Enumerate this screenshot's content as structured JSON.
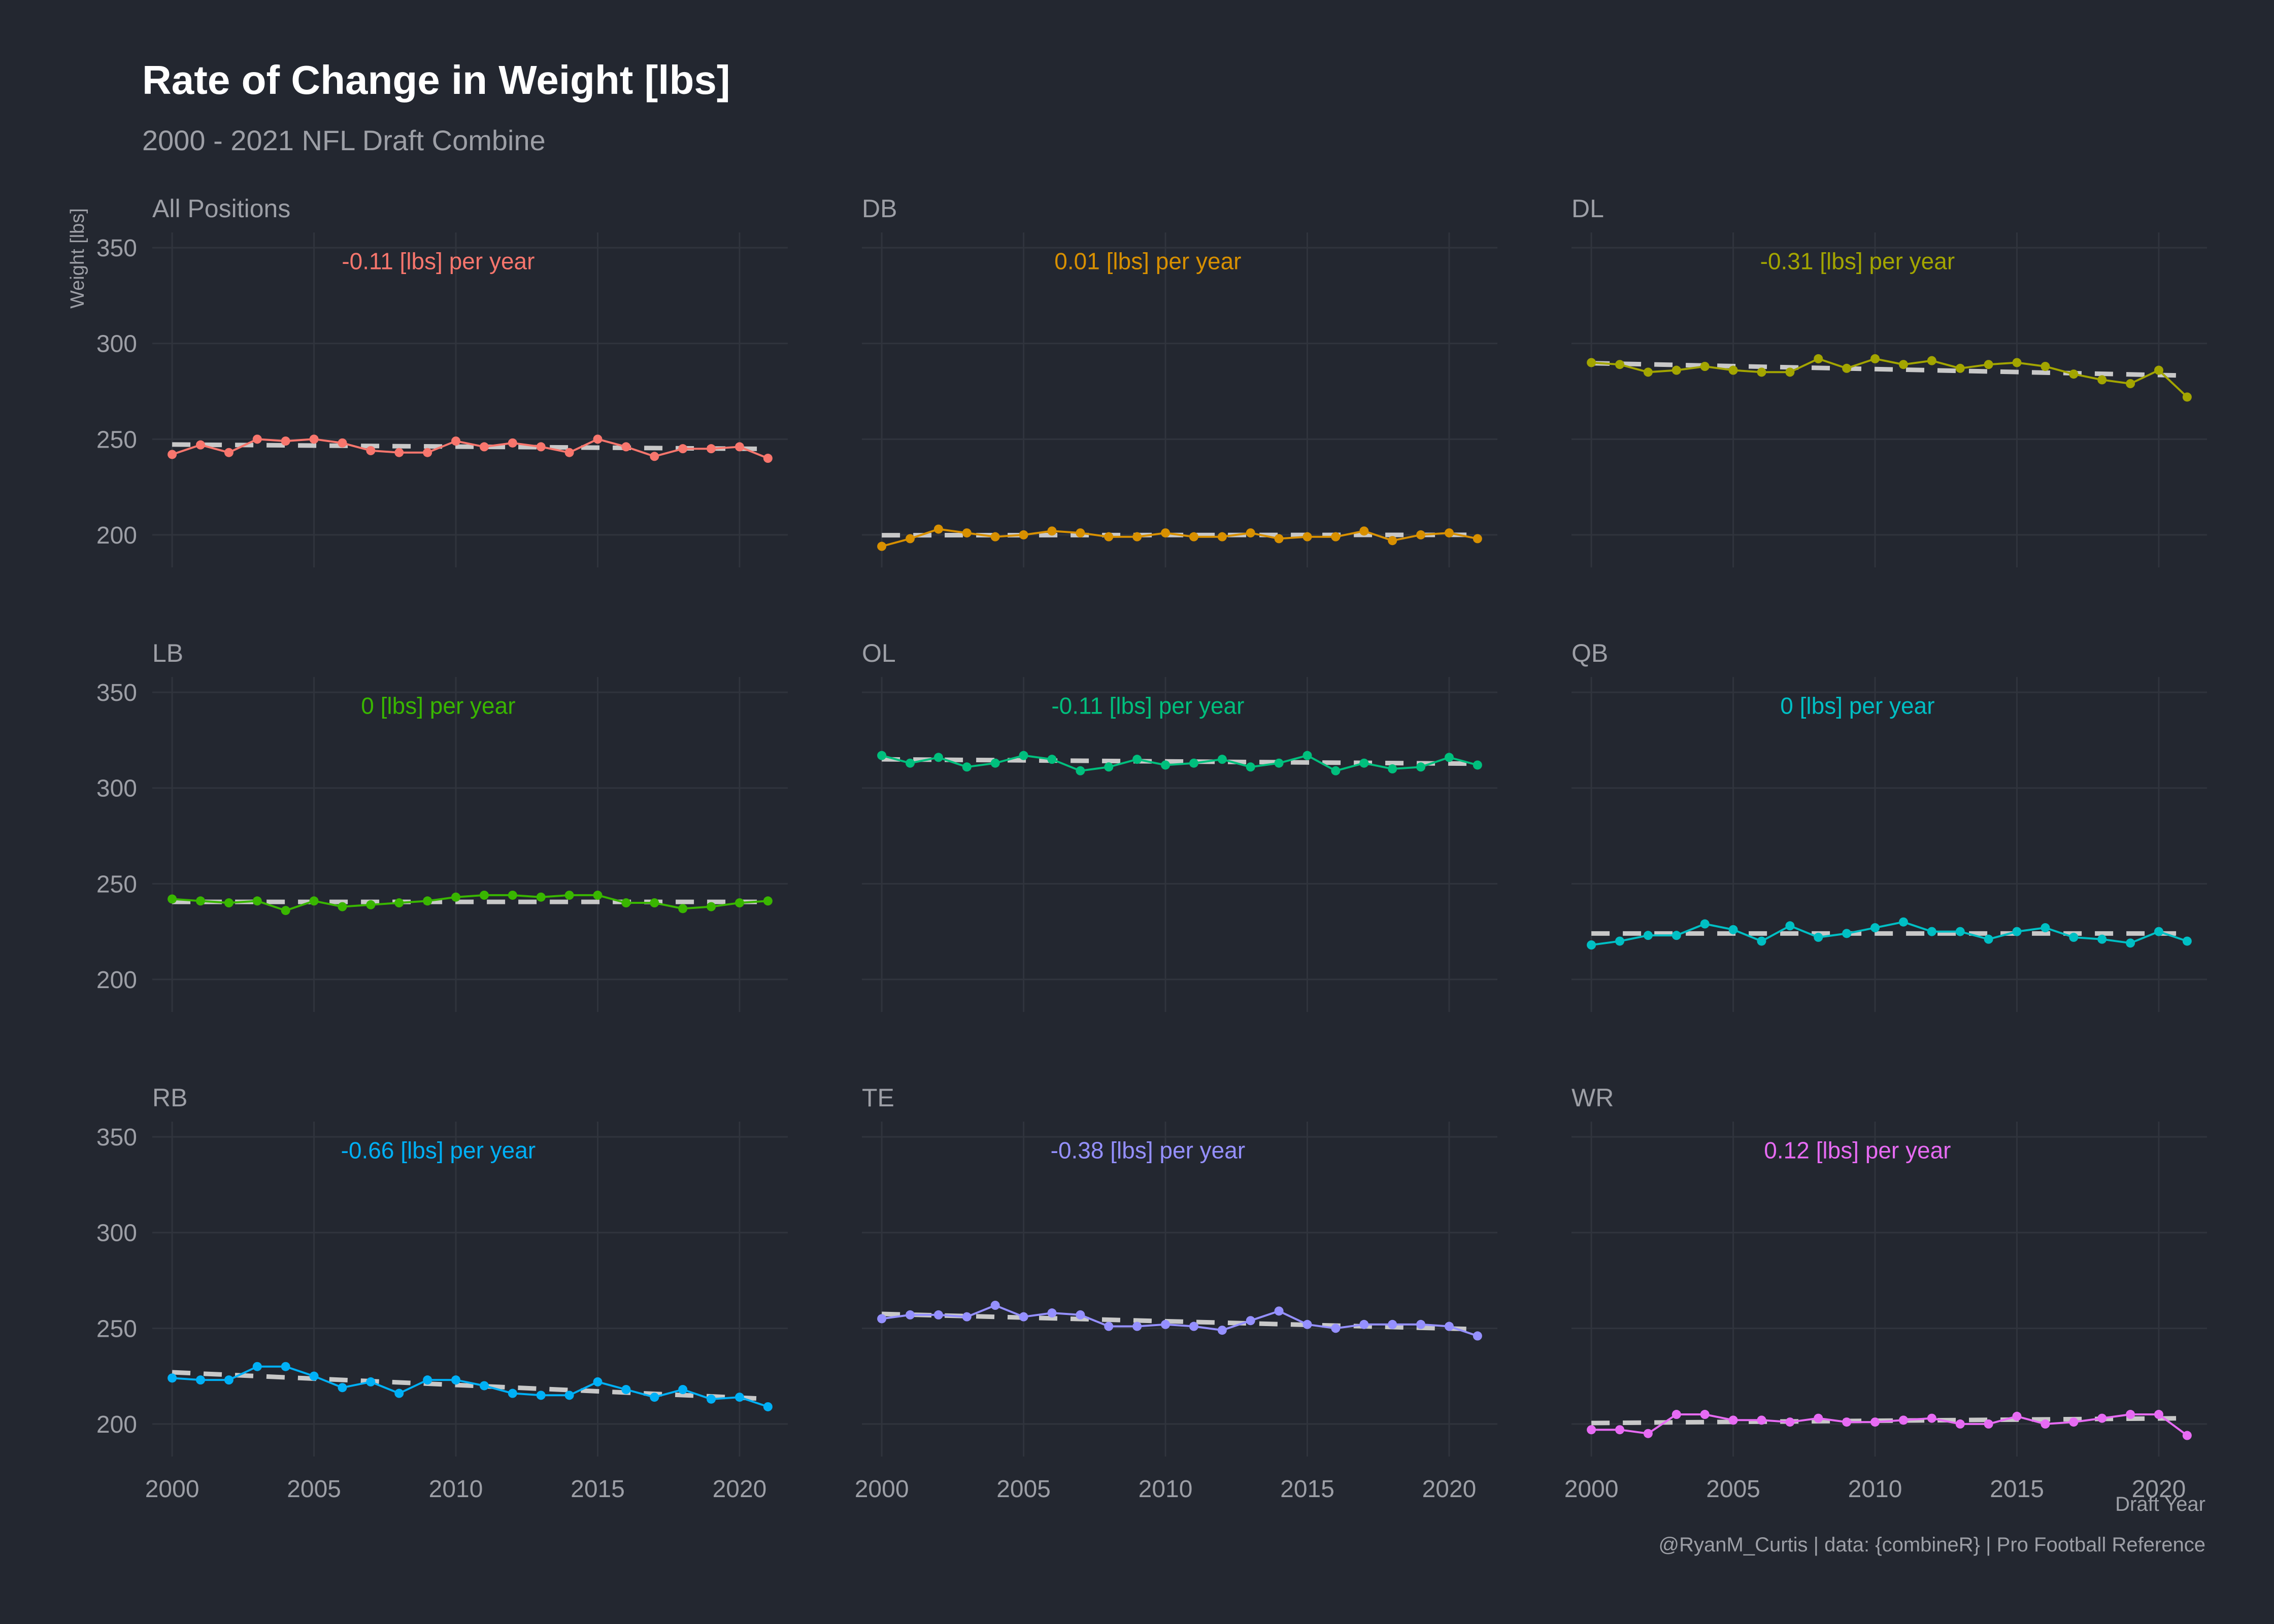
{
  "title": "Rate of Change in Weight [lbs]",
  "subtitle": "2000 - 2021 NFL Draft Combine",
  "caption": "@RyanM_Curtis | data: {combineR} | Pro Football Reference",
  "colors": {
    "background": "#232730",
    "grid": "#30343d",
    "text": "#9d9fa6",
    "trend": "#c8c8c8"
  },
  "chart_data": {
    "type": "line",
    "xlabel": "Draft Year",
    "ylabel": "Weight [lbs]",
    "xlim": [
      1999.3,
      2021.7
    ],
    "ylim": [
      183,
      358
    ],
    "x_ticks": [
      2000,
      2005,
      2010,
      2015,
      2020
    ],
    "y_ticks": [
      200,
      250,
      300,
      350
    ],
    "grid": true,
    "x": [
      2000,
      2001,
      2002,
      2003,
      2004,
      2005,
      2006,
      2007,
      2008,
      2009,
      2010,
      2011,
      2012,
      2013,
      2014,
      2015,
      2016,
      2017,
      2018,
      2019,
      2020,
      2021
    ],
    "panels": [
      {
        "name": "All Positions",
        "color": "#f8766d",
        "annotation": "-0.11 [lbs] per year",
        "trend": [
          247.2,
          244.9
        ],
        "values": [
          242,
          247,
          243,
          250,
          249,
          250,
          248,
          244,
          243,
          243,
          249,
          246,
          248,
          246,
          243,
          250,
          246,
          241,
          245,
          245,
          246,
          240
        ]
      },
      {
        "name": "DB",
        "color": "#d89000",
        "annotation": "0.01 [lbs] per year",
        "trend": [
          199.8,
          200.0
        ],
        "values": [
          194,
          198,
          203,
          201,
          199,
          200,
          202,
          201,
          199,
          199,
          201,
          199,
          199,
          201,
          198,
          199,
          199,
          202,
          197,
          200,
          201,
          198
        ]
      },
      {
        "name": "DL",
        "color": "#a3a500",
        "annotation": "-0.31 [lbs] per year",
        "trend": [
          289.7,
          283.2
        ],
        "values": [
          290,
          289,
          285,
          286,
          288,
          286,
          285,
          285,
          292,
          287,
          292,
          289,
          291,
          287,
          289,
          290,
          288,
          284,
          281,
          279,
          286,
          272
        ]
      },
      {
        "name": "LB",
        "color": "#39b600",
        "annotation": "0 [lbs] per year",
        "trend": [
          240.5,
          240.5
        ],
        "values": [
          242,
          241,
          240,
          241,
          236,
          241,
          238,
          239,
          240,
          241,
          243,
          244,
          244,
          243,
          244,
          244,
          240,
          240,
          237,
          238,
          240,
          241
        ]
      },
      {
        "name": "OL",
        "color": "#00bf7d",
        "annotation": "-0.11 [lbs] per year",
        "trend": [
          315.0,
          312.7
        ],
        "values": [
          317,
          313,
          316,
          311,
          313,
          317,
          315,
          309,
          311,
          315,
          312,
          313,
          315,
          311,
          313,
          317,
          309,
          313,
          310,
          311,
          316,
          312
        ]
      },
      {
        "name": "QB",
        "color": "#00bfc4",
        "annotation": "0 [lbs] per year",
        "trend": [
          224.0,
          224.0
        ],
        "values": [
          218,
          220,
          223,
          223,
          229,
          226,
          220,
          228,
          222,
          224,
          227,
          230,
          225,
          225,
          221,
          225,
          227,
          222,
          221,
          219,
          225,
          220
        ]
      },
      {
        "name": "RB",
        "color": "#00b0f6",
        "annotation": "-0.66 [lbs] per year",
        "trend": [
          227.0,
          213.1
        ],
        "values": [
          224,
          223,
          223,
          230,
          230,
          225,
          219,
          222,
          216,
          223,
          223,
          220,
          216,
          215,
          215,
          222,
          218,
          214,
          218,
          213,
          214,
          209
        ]
      },
      {
        "name": "TE",
        "color": "#9590ff",
        "annotation": "-0.38 [lbs] per year",
        "trend": [
          257.5,
          249.5
        ],
        "values": [
          255,
          257,
          257,
          256,
          262,
          256,
          258,
          257,
          251,
          251,
          252,
          251,
          249,
          254,
          259,
          252,
          250,
          252,
          252,
          252,
          251,
          246
        ]
      },
      {
        "name": "WR",
        "color": "#e76bf3",
        "annotation": "0.12 [lbs] per year",
        "trend": [
          200.5,
          203.0
        ],
        "values": [
          197,
          197,
          195,
          205,
          205,
          202,
          202,
          201,
          203,
          201,
          201,
          202,
          203,
          200,
          200,
          204,
          200,
          201,
          203,
          205,
          205,
          194
        ]
      }
    ]
  }
}
